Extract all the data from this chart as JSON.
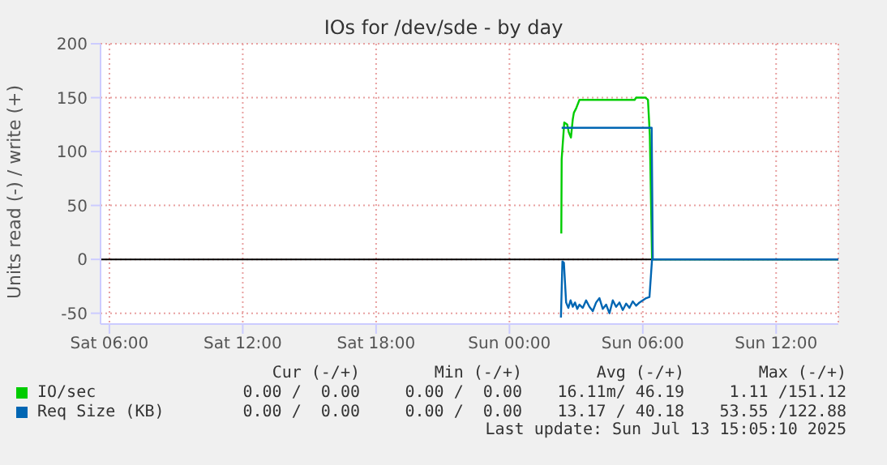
{
  "chart_data": {
    "type": "line",
    "title": "IOs for /dev/sde - by day",
    "ylabel": "Units read (-) / write (+)",
    "xlim": [
      "2025-07-12T05:36",
      "2025-07-13T14:48"
    ],
    "xticks": [
      {
        "value": "2025-07-12T06:00",
        "label": "Sat 06:00"
      },
      {
        "value": "2025-07-12T12:00",
        "label": "Sat 12:00"
      },
      {
        "value": "2025-07-12T18:00",
        "label": "Sat 18:00"
      },
      {
        "value": "2025-07-13T00:00",
        "label": "Sun 00:00"
      },
      {
        "value": "2025-07-13T06:00",
        "label": "Sun 06:00"
      },
      {
        "value": "2025-07-13T12:00",
        "label": "Sun 12:00"
      }
    ],
    "ylim": [
      -60,
      200
    ],
    "yticks": [
      -50,
      0,
      50,
      100,
      150,
      200
    ],
    "grid": true,
    "legend": "bottom left",
    "marker": "none",
    "ref_lines": [
      {
        "axis": "y",
        "value": 0,
        "color": "#000000"
      }
    ],
    "series": [
      {
        "name": "IO/sec",
        "color": "#00cc00",
        "x": [
          "2025-07-13T02:20",
          "2025-07-13T02:21",
          "2025-07-13T02:28",
          "2025-07-13T02:36",
          "2025-07-13T02:40",
          "2025-07-13T02:46",
          "2025-07-13T02:51",
          "2025-07-13T02:54",
          "2025-07-13T03:00",
          "2025-07-13T03:09",
          "2025-07-13T04:00",
          "2025-07-13T05:00",
          "2025-07-13T05:38",
          "2025-07-13T05:42",
          "2025-07-13T06:07",
          "2025-07-13T06:14",
          "2025-07-13T06:19",
          "2025-07-13T06:25",
          "2025-07-13T14:48"
        ],
        "values": [
          24,
          93,
          127,
          125,
          118,
          113,
          130,
          136,
          140,
          148,
          148,
          148,
          148,
          150,
          150,
          148,
          115,
          0,
          0
        ]
      },
      {
        "name": "Req Size (KB)",
        "color": "#0066b3",
        "x": [
          "2025-07-13T02:21",
          "2025-07-13T06:24",
          "2025-07-13T06:27",
          "2025-07-13T14:48"
        ],
        "values": [
          122,
          122,
          0,
          0
        ]
      },
      {
        "color": "#0066b3",
        "x": [
          "2025-07-13T02:19",
          "2025-07-13T02:23",
          "2025-07-13T02:27",
          "2025-07-13T02:33",
          "2025-07-13T02:39",
          "2025-07-13T02:45",
          "2025-07-13T02:51",
          "2025-07-13T02:57",
          "2025-07-13T03:03",
          "2025-07-13T03:09",
          "2025-07-13T03:18",
          "2025-07-13T03:27",
          "2025-07-13T03:36",
          "2025-07-13T03:45",
          "2025-07-13T03:54",
          "2025-07-13T04:03",
          "2025-07-13T04:12",
          "2025-07-13T04:21",
          "2025-07-13T04:30",
          "2025-07-13T04:39",
          "2025-07-13T04:48",
          "2025-07-13T04:57",
          "2025-07-13T05:06",
          "2025-07-13T05:15",
          "2025-07-13T05:24",
          "2025-07-13T05:33",
          "2025-07-13T05:42",
          "2025-07-13T05:51",
          "2025-07-13T06:00",
          "2025-07-13T06:09",
          "2025-07-13T06:18",
          "2025-07-13T06:25",
          "2025-07-13T14:48"
        ],
        "values": [
          -54,
          -2,
          -3,
          -40,
          -45,
          -38,
          -44,
          -40,
          -46,
          -42,
          -45,
          -38,
          -44,
          -48,
          -40,
          -36,
          -46,
          -42,
          -50,
          -38,
          -44,
          -40,
          -47,
          -41,
          -45,
          -39,
          -43,
          -40,
          -38,
          -36,
          -35,
          0,
          0
        ]
      }
    ],
    "annotations": [
      "Cur (-/+)",
      "Min (-/+)",
      "Avg (-/+)",
      "Max (-/+)",
      "0.00 /  0.00",
      "0.00 /  0.00",
      "16.11m/ 46.19",
      "1.11 /151.12",
      "0.00 /  0.00",
      "0.00 /  0.00",
      "13.17 / 40.18",
      "53.55 /122.88",
      "Last update: Sun Jul 13 15:05:10 2025"
    ]
  }
}
